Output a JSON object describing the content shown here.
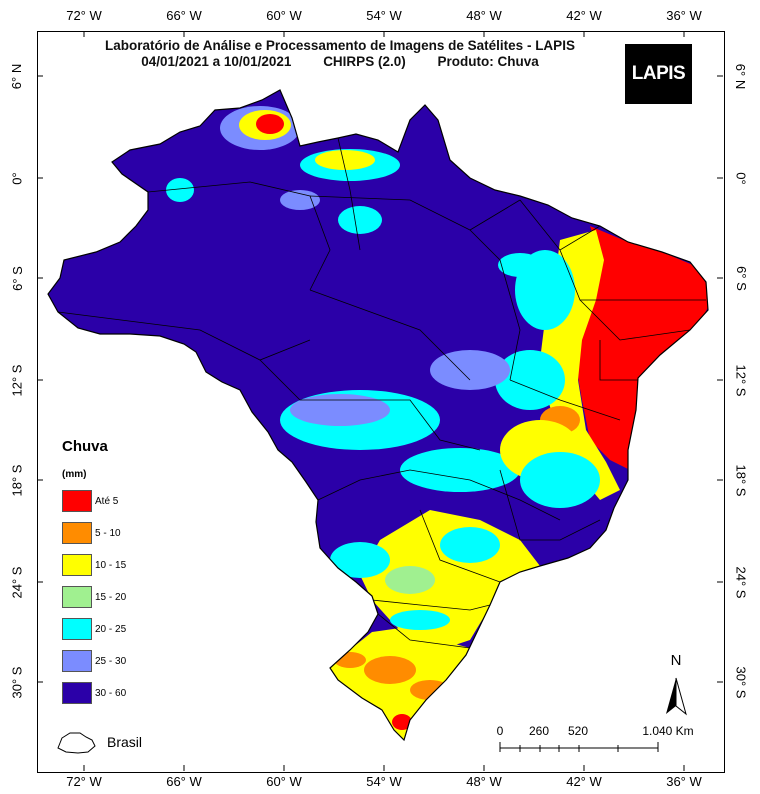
{
  "title": {
    "line1": "Laboratório de Análise e Processamento de Imagens de Satélites - LAPIS",
    "period": "04/01/2021  a  10/01/2021",
    "model": "CHIRPS (2.0)",
    "product": "Produto: Chuva"
  },
  "logo": {
    "text": "LAPIS"
  },
  "axes": {
    "longitudes": [
      "72° W",
      "66° W",
      "60° W",
      "54° W",
      "48° W",
      "42° W",
      "36° W"
    ],
    "latitudes": [
      "6° N",
      "0°",
      "6° S",
      "12° S",
      "18° S",
      "24° S",
      "30° S"
    ]
  },
  "legend": {
    "title": "Chuva",
    "unit": "(mm)",
    "items": [
      {
        "label": "Até 5",
        "color": "#ff0000"
      },
      {
        "label": "5 - 10",
        "color": "#ff8c00"
      },
      {
        "label": "10 - 15",
        "color": "#ffff00"
      },
      {
        "label": "15 - 20",
        "color": "#a0f090"
      },
      {
        "label": "20 - 25",
        "color": "#00ffff"
      },
      {
        "label": "25 - 30",
        "color": "#7b8cff"
      },
      {
        "label": "30 - 60",
        "color": "#2b00a8"
      }
    ]
  },
  "boundary_legend": {
    "label": "Brasil"
  },
  "north_arrow": {
    "label": "N"
  },
  "scale_bar": {
    "labels": [
      "0",
      "260",
      "520",
      "1.040 Km"
    ]
  }
}
